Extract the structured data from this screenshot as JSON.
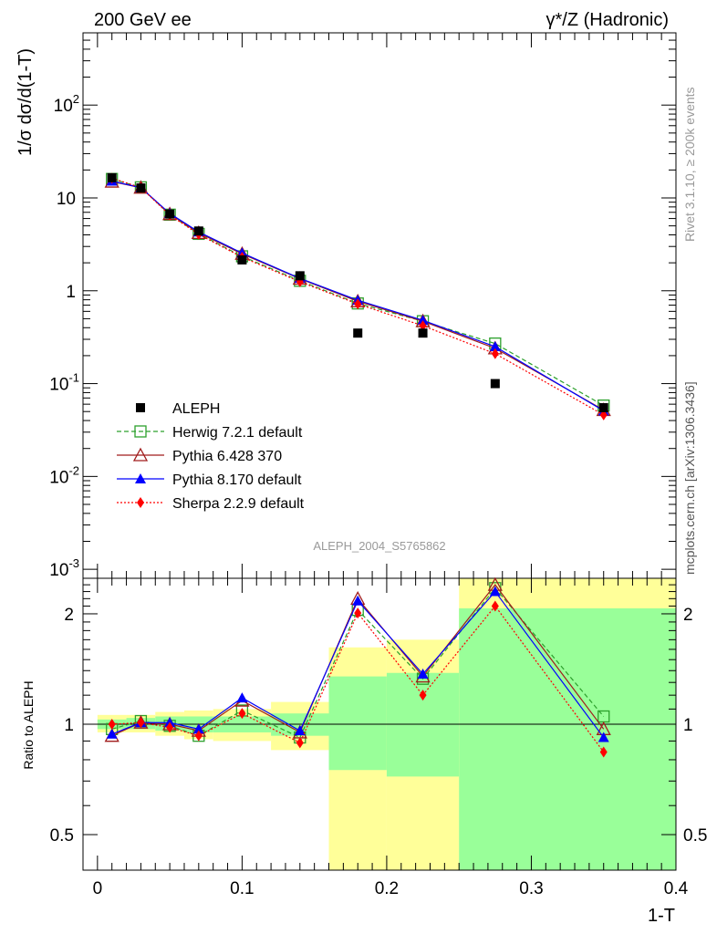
{
  "header": {
    "left_title": "200 GeV ee",
    "right_title_prefix": "γ*/Z (Hadronic)",
    "side_label_top": "Rivet 3.1.10, ≥ 200k events",
    "side_label_bottom": "mcplots.cern.ch [arXiv:1306.3436]",
    "analysis_id": "ALEPH_2004_S5765862"
  },
  "colors": {
    "data": "#000000",
    "herwig": "#2ca02c",
    "pythia6": "#a01c1c",
    "pythia8": "#0000ff",
    "sherpa": "#ff0000",
    "band_inner": "#99ff99",
    "band_outer": "#ffff99"
  },
  "chart_data": [
    {
      "type": "line",
      "panel": "main",
      "title": "γ*/Z (Hadronic)",
      "xlabel": "1-T",
      "ylabel": "1/σ dσ/d(1-T)",
      "yscale": "log",
      "ylim": [
        0.0008,
        600
      ],
      "xlim": [
        -0.01,
        0.4
      ],
      "ytick_labels": [
        "10^-3",
        "10^-2",
        "10^-1",
        "1",
        "10",
        "10^2"
      ],
      "x": [
        0.01,
        0.03,
        0.05,
        0.07,
        0.1,
        0.14,
        0.18,
        0.225,
        0.275,
        0.35
      ],
      "series": [
        {
          "name": "ALEPH",
          "key": "data",
          "values": [
            16.5,
            12.8,
            6.7,
            4.4,
            2.15,
            1.45,
            0.35,
            0.35,
            0.1,
            0.055
          ]
        },
        {
          "name": "Herwig 7.2.1 default",
          "key": "herwig",
          "values": [
            16.0,
            13.0,
            6.6,
            4.1,
            2.35,
            1.28,
            0.73,
            0.47,
            0.27,
            0.058
          ]
        },
        {
          "name": "Pythia 6.428 370",
          "key": "pythia6",
          "values": [
            15.0,
            12.9,
            6.7,
            4.2,
            2.5,
            1.35,
            0.77,
            0.47,
            0.24,
            0.052
          ]
        },
        {
          "name": "Pythia 8.170 default",
          "key": "pythia8",
          "values": [
            15.2,
            12.9,
            6.8,
            4.3,
            2.55,
            1.36,
            0.79,
            0.48,
            0.25,
            0.051
          ]
        },
        {
          "name": "Sherpa 2.2.9 default",
          "key": "sherpa",
          "values": [
            16.3,
            12.9,
            6.55,
            4.05,
            2.3,
            1.25,
            0.72,
            0.42,
            0.21,
            0.046
          ]
        }
      ]
    },
    {
      "type": "line",
      "panel": "ratio",
      "xlabel": "1-T",
      "ylabel": "Ratio to ALEPH",
      "yscale": "log",
      "ylim": [
        0.4,
        2.5
      ],
      "yticks": [
        0.5,
        1,
        2
      ],
      "ytick_labels": [
        "0.5",
        "1",
        "2"
      ],
      "xticks": [
        0,
        0.1,
        0.2,
        0.3,
        0.4
      ],
      "xtick_labels": [
        "0",
        "0.1",
        "0.2",
        "0.3",
        "0.4"
      ],
      "x": [
        0.01,
        0.03,
        0.05,
        0.07,
        0.1,
        0.14,
        0.18,
        0.225,
        0.275,
        0.35
      ],
      "bands": [
        {
          "x_range": [
            0.0,
            0.02
          ],
          "inner": [
            0.97,
            1.03
          ],
          "outer": [
            0.95,
            1.06
          ]
        },
        {
          "x_range": [
            0.02,
            0.04
          ],
          "inner": [
            0.97,
            1.04
          ],
          "outer": [
            0.95,
            1.06
          ]
        },
        {
          "x_range": [
            0.04,
            0.06
          ],
          "inner": [
            0.96,
            1.05
          ],
          "outer": [
            0.93,
            1.08
          ]
        },
        {
          "x_range": [
            0.06,
            0.08
          ],
          "inner": [
            0.95,
            1.05
          ],
          "outer": [
            0.91,
            1.09
          ]
        },
        {
          "x_range": [
            0.08,
            0.12
          ],
          "inner": [
            0.95,
            1.05
          ],
          "outer": [
            0.9,
            1.1
          ]
        },
        {
          "x_range": [
            0.12,
            0.16
          ],
          "inner": [
            0.93,
            1.07
          ],
          "outer": [
            0.85,
            1.15
          ]
        },
        {
          "x_range": [
            0.16,
            0.2
          ],
          "inner": [
            0.75,
            1.35
          ],
          "outer": [
            0.38,
            1.62
          ]
        },
        {
          "x_range": [
            0.2,
            0.25
          ],
          "inner": [
            0.72,
            1.38
          ],
          "outer": [
            0.36,
            1.7
          ]
        },
        {
          "x_range": [
            0.25,
            0.4
          ],
          "inner": [
            0.36,
            2.07
          ],
          "outer": [
            0.36,
            2.5
          ]
        }
      ],
      "series": [
        {
          "name": "Herwig 7.2.1 default",
          "key": "herwig",
          "values": [
            0.97,
            1.02,
            0.99,
            0.93,
            1.09,
            0.92,
            2.05,
            1.33,
            2.35,
            1.05
          ]
        },
        {
          "name": "Pythia 6.428 370",
          "key": "pythia6",
          "values": [
            0.93,
            1.01,
            1.0,
            0.96,
            1.16,
            0.95,
            2.2,
            1.35,
            2.4,
            0.97
          ]
        },
        {
          "name": "Pythia 8.170 default",
          "key": "pythia8",
          "values": [
            0.94,
            1.01,
            1.01,
            0.97,
            1.18,
            0.96,
            2.17,
            1.37,
            2.3,
            0.92
          ]
        },
        {
          "name": "Sherpa 2.2.9 default",
          "key": "sherpa",
          "values": [
            1.0,
            1.01,
            0.98,
            0.93,
            1.07,
            0.89,
            2.01,
            1.2,
            2.1,
            0.84
          ]
        }
      ]
    }
  ]
}
